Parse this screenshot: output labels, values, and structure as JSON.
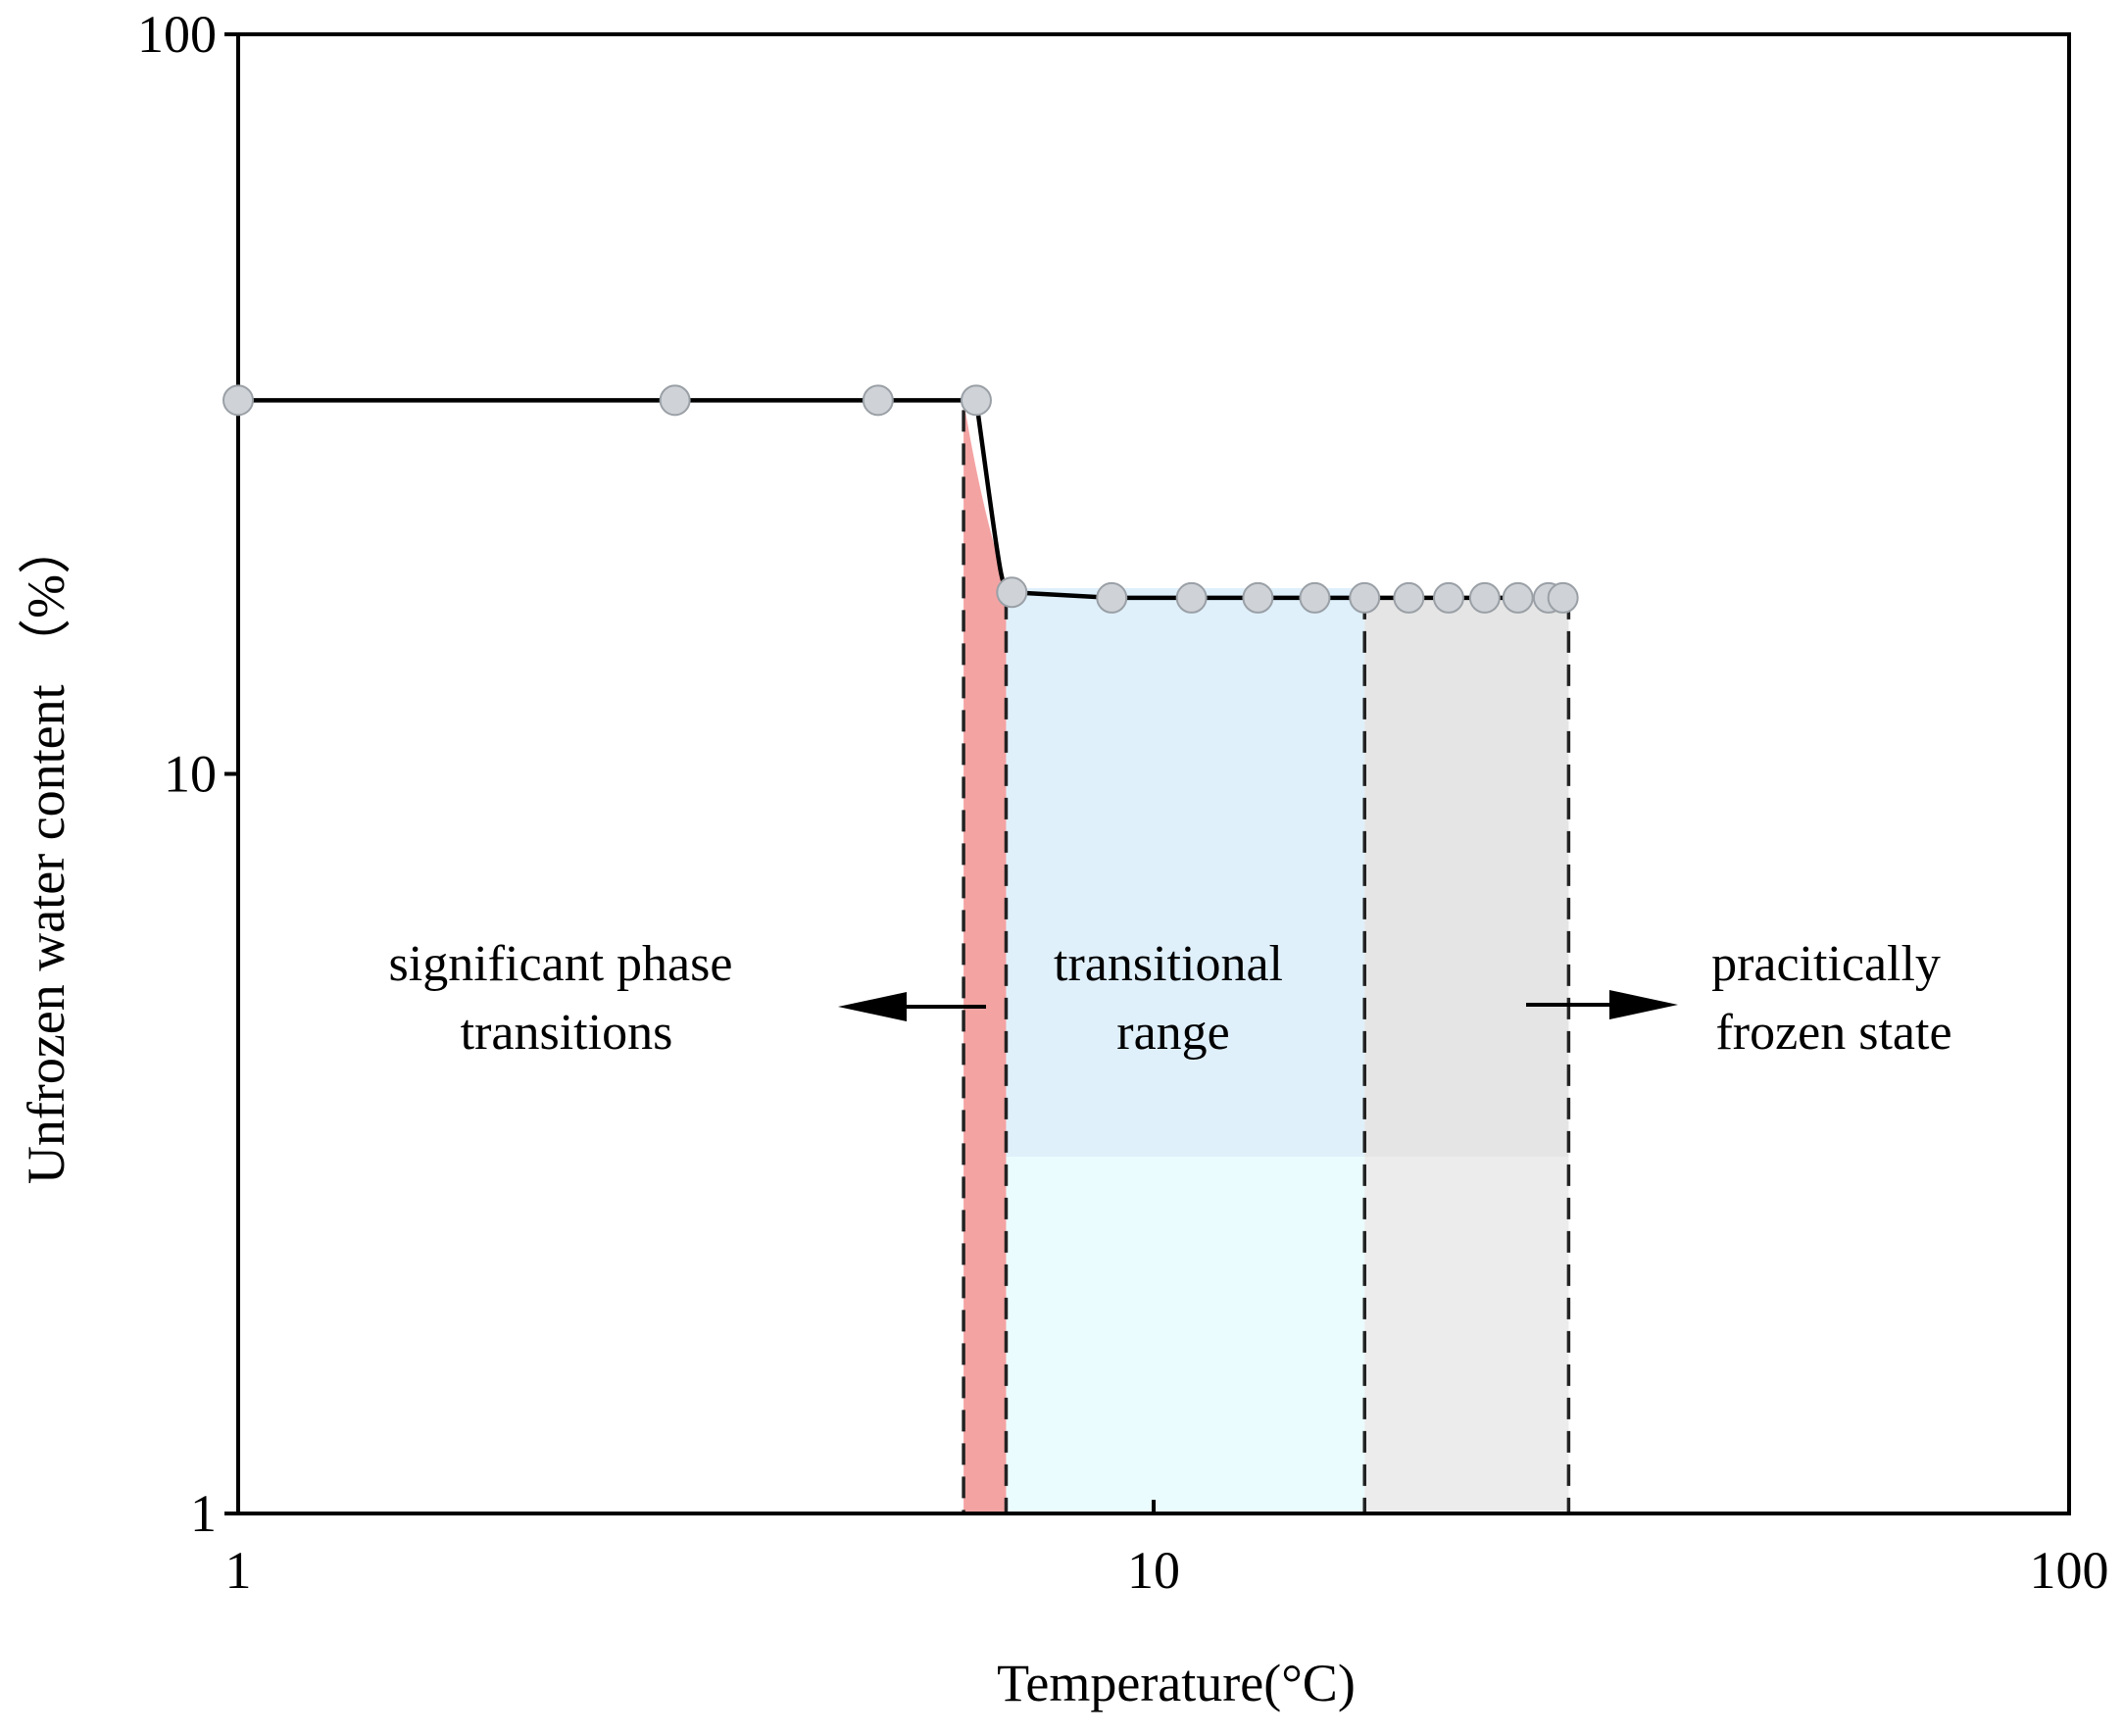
{
  "chart_data": {
    "type": "line",
    "xlabel": "Temperature(°C)",
    "ylabel": "Unfrozen water content （%）",
    "x_scale": "log",
    "y_scale": "log",
    "xlim": [
      1,
      100
    ],
    "ylim": [
      1,
      100
    ],
    "x_ticks": [
      "1",
      "10",
      "100"
    ],
    "y_ticks": [
      "1",
      "10",
      "100"
    ],
    "grid": false,
    "series": [
      {
        "x": [
          1.0,
          3.0,
          5.0,
          6.4,
          7.0,
          9.0,
          11.0,
          13.0,
          15.0,
          17.0,
          19.0,
          21.0,
          23.0,
          25.0,
          27.0,
          28.0
        ],
        "y": [
          32.0,
          32.0,
          32.0,
          32.0,
          17.6,
          17.3,
          17.3,
          17.3,
          17.3,
          17.3,
          17.3,
          17.3,
          17.3,
          17.3,
          17.3,
          17.3
        ]
      }
    ],
    "regions": [
      {
        "x_range": [
          6.2,
          6.9
        ],
        "color": "#f4a3a3"
      },
      {
        "x_range": [
          6.9,
          17.0
        ],
        "color": "#dff0fb"
      },
      {
        "x_range": [
          17.0,
          28.4
        ],
        "color": "#e5e5e5"
      }
    ],
    "region_boundaries": [
      6.2,
      6.9,
      17.0,
      28.4
    ],
    "annotations": [
      {
        "lines": [
          "significant phase",
          "transitions"
        ],
        "arrow": "left"
      },
      {
        "lines": [
          "transitional",
          "range"
        ],
        "arrow": "none"
      },
      {
        "lines": [
          "pracitically",
          "frozen state"
        ],
        "arrow": "right"
      }
    ],
    "colors": {
      "line": "#000000",
      "marker_fill": "#cfd3d8",
      "marker_edge": "#9aa0a6",
      "region_red": "#f4a3a3",
      "region_blue": "#dff0fb",
      "region_blue_lower": "#eafcfd",
      "region_gray": "#e5e5e5",
      "region_gray_lower": "#ececec"
    }
  }
}
